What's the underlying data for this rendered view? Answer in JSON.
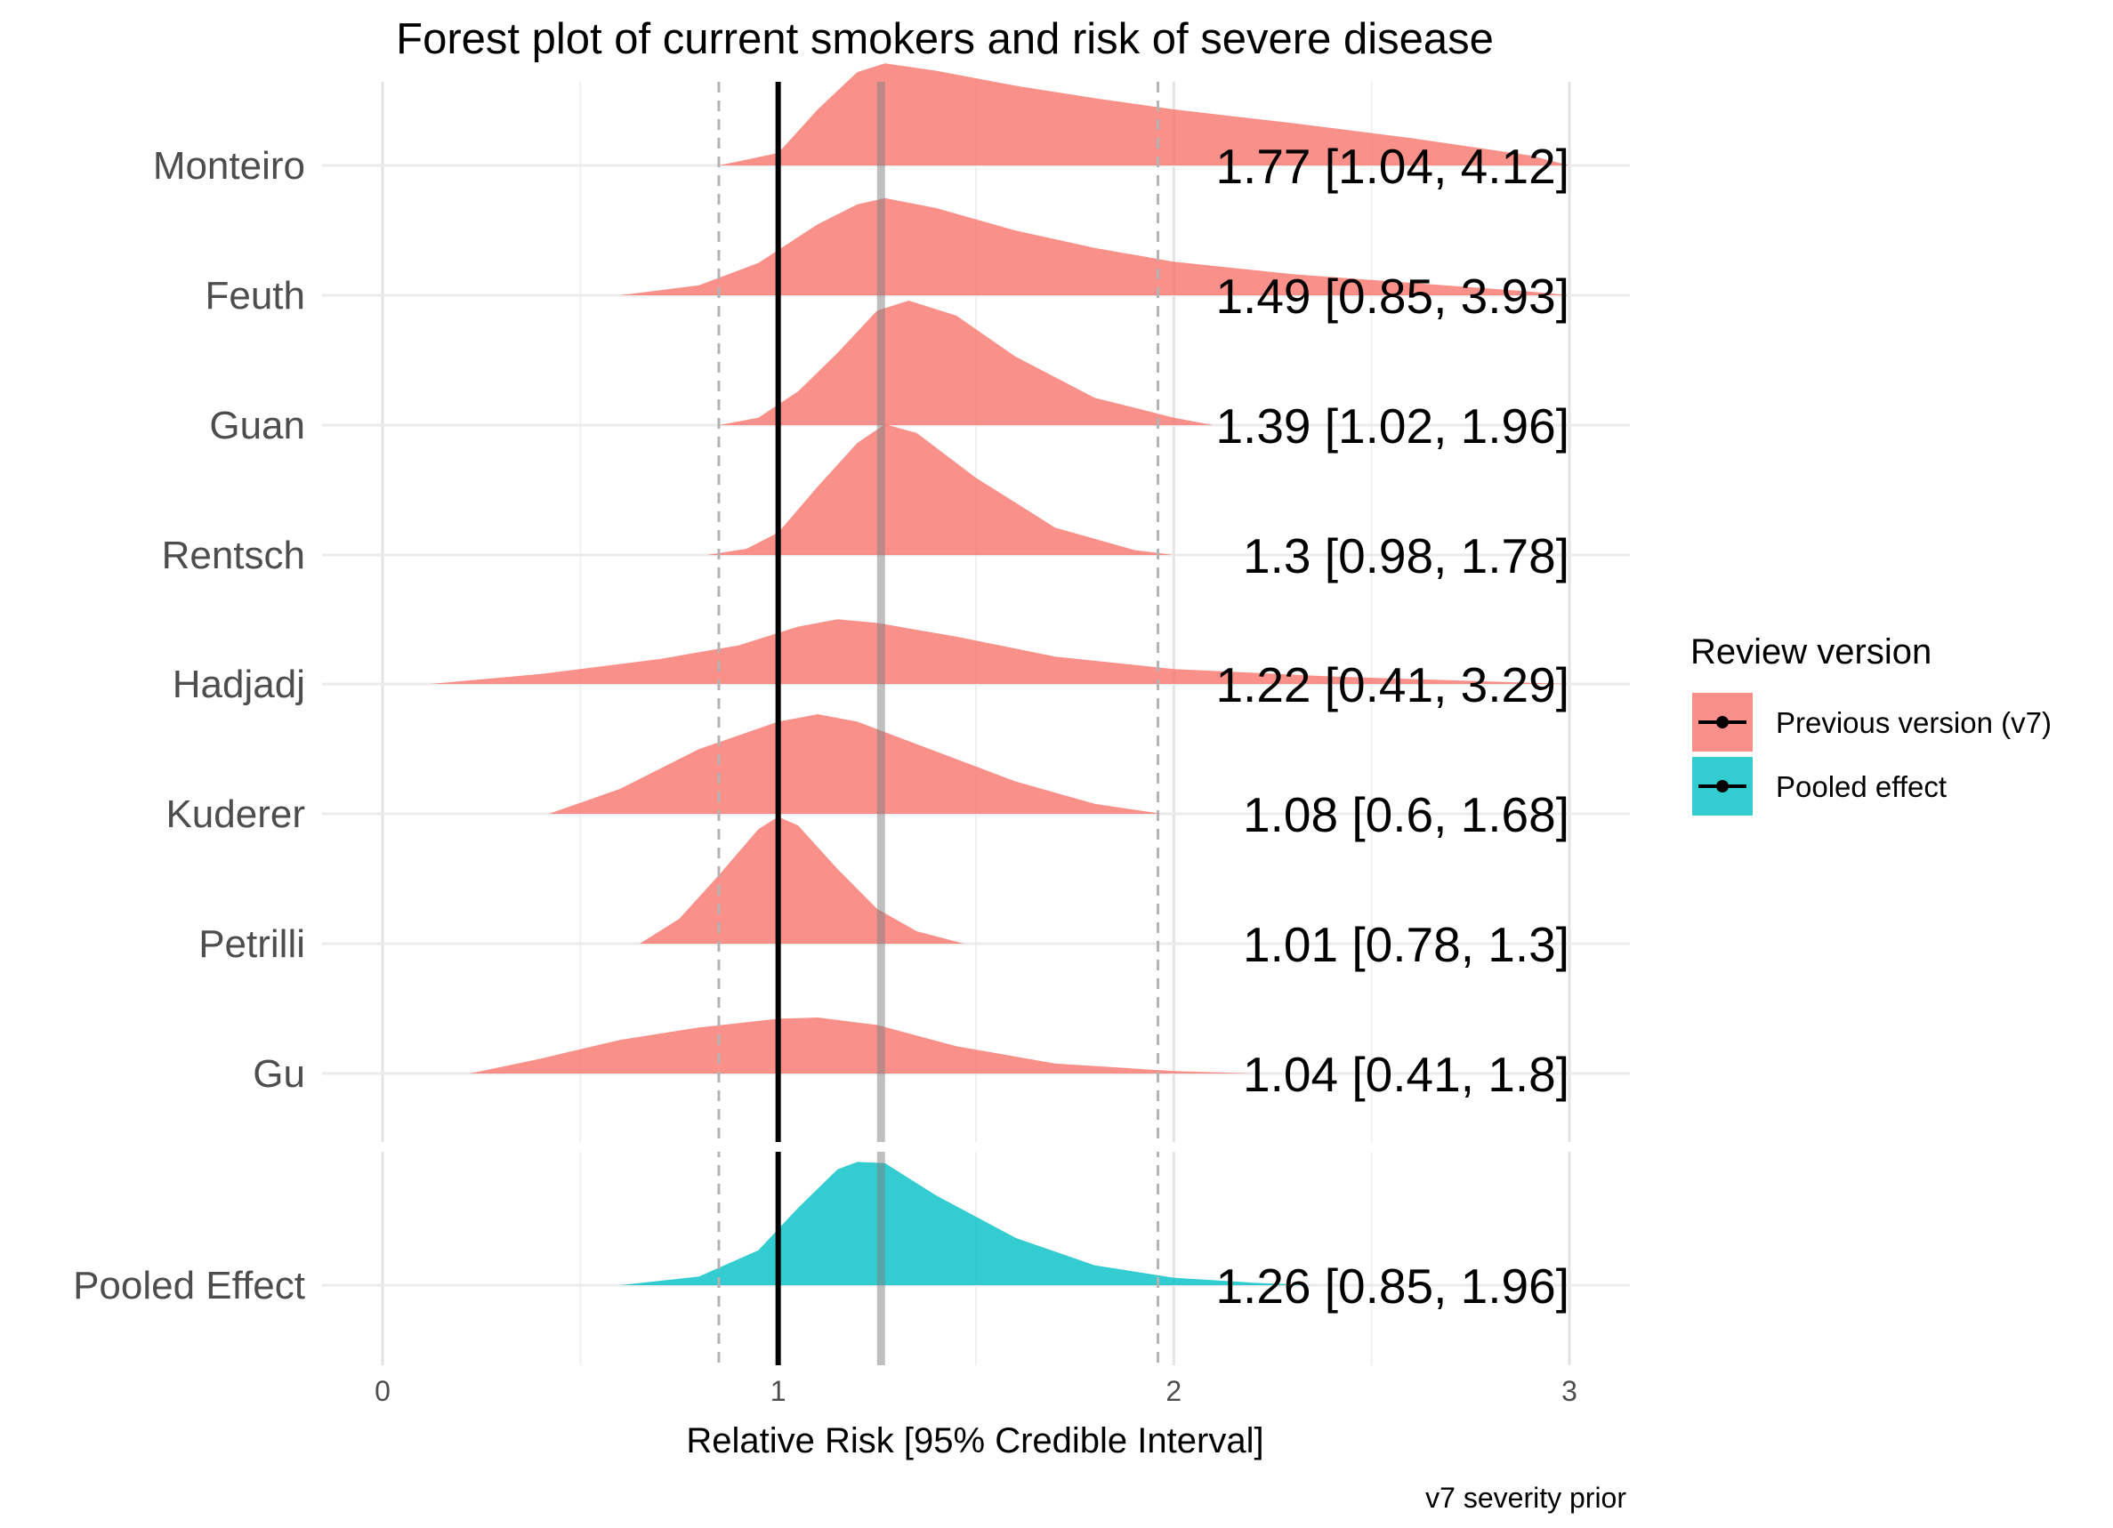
{
  "chart_data": {
    "type": "ridgeline",
    "title": "Forest plot of current smokers and risk of severe disease",
    "xlabel": "Relative Risk [95% Credible Interval]",
    "caption": "v7 severity prior",
    "xlim": [
      0,
      3
    ],
    "x_ticks": [
      "0",
      "1",
      "2",
      "3"
    ],
    "grid": true,
    "legend_position": "right",
    "legend": {
      "title": "Review version",
      "items": [
        {
          "label": "Previous version (v7)",
          "color": "#F8766D"
        },
        {
          "label": "Pooled effect",
          "color": "#00BFC4"
        }
      ]
    },
    "reference_lines": {
      "null_effect": 1.0,
      "pooled_estimate": 1.26,
      "pooled_ci": [
        0.85,
        1.96
      ]
    },
    "studies": [
      {
        "name": "Monteiro",
        "estimate": 1.77,
        "lower": 1.04,
        "upper": 4.12,
        "label": "1.77 [1.04, 4.12]",
        "group": "Previous version (v7)",
        "density": [
          [
            0.85,
            0
          ],
          [
            1.0,
            0.1
          ],
          [
            1.1,
            0.45
          ],
          [
            1.2,
            0.75
          ],
          [
            1.27,
            0.82
          ],
          [
            1.4,
            0.76
          ],
          [
            1.6,
            0.64
          ],
          [
            1.8,
            0.54
          ],
          [
            2.0,
            0.45
          ],
          [
            2.3,
            0.34
          ],
          [
            2.6,
            0.22
          ],
          [
            2.9,
            0.08
          ],
          [
            3.0,
            0
          ]
        ]
      },
      {
        "name": "Feuth",
        "estimate": 1.49,
        "lower": 0.85,
        "upper": 3.93,
        "label": "1.49 [0.85, 3.93]",
        "group": "Previous version (v7)",
        "density": [
          [
            0.6,
            0
          ],
          [
            0.8,
            0.08
          ],
          [
            0.95,
            0.26
          ],
          [
            1.1,
            0.57
          ],
          [
            1.2,
            0.73
          ],
          [
            1.27,
            0.78
          ],
          [
            1.4,
            0.7
          ],
          [
            1.6,
            0.52
          ],
          [
            1.8,
            0.38
          ],
          [
            2.0,
            0.27
          ],
          [
            2.3,
            0.17
          ],
          [
            2.6,
            0.1
          ],
          [
            2.9,
            0.03
          ],
          [
            3.0,
            0
          ]
        ]
      },
      {
        "name": "Guan",
        "estimate": 1.39,
        "lower": 1.02,
        "upper": 1.96,
        "label": "1.39 [1.02, 1.96]",
        "group": "Previous version (v7)",
        "density": [
          [
            0.85,
            0
          ],
          [
            0.95,
            0.06
          ],
          [
            1.05,
            0.27
          ],
          [
            1.15,
            0.58
          ],
          [
            1.25,
            0.92
          ],
          [
            1.33,
            1.0
          ],
          [
            1.45,
            0.88
          ],
          [
            1.6,
            0.55
          ],
          [
            1.8,
            0.22
          ],
          [
            2.0,
            0.06
          ],
          [
            2.1,
            0
          ]
        ]
      },
      {
        "name": "Rentsch",
        "estimate": 1.3,
        "lower": 0.98,
        "upper": 1.78,
        "label": "1.3 [0.98, 1.78]",
        "group": "Previous version (v7)",
        "density": [
          [
            0.82,
            0
          ],
          [
            0.92,
            0.05
          ],
          [
            1.0,
            0.18
          ],
          [
            1.1,
            0.55
          ],
          [
            1.2,
            0.9
          ],
          [
            1.27,
            1.05
          ],
          [
            1.35,
            0.98
          ],
          [
            1.5,
            0.62
          ],
          [
            1.7,
            0.22
          ],
          [
            1.9,
            0.04
          ],
          [
            2.0,
            0
          ]
        ]
      },
      {
        "name": "Hadjadj",
        "estimate": 1.22,
        "lower": 0.41,
        "upper": 3.29,
        "label": "1.22 [0.41, 3.29]",
        "group": "Previous version (v7)",
        "density": [
          [
            0.12,
            0
          ],
          [
            0.4,
            0.08
          ],
          [
            0.7,
            0.2
          ],
          [
            0.9,
            0.31
          ],
          [
            1.05,
            0.46
          ],
          [
            1.15,
            0.52
          ],
          [
            1.25,
            0.49
          ],
          [
            1.45,
            0.38
          ],
          [
            1.7,
            0.22
          ],
          [
            2.0,
            0.12
          ],
          [
            2.4,
            0.06
          ],
          [
            2.8,
            0.02
          ],
          [
            3.0,
            0
          ]
        ]
      },
      {
        "name": "Kuderer",
        "estimate": 1.08,
        "lower": 0.6,
        "upper": 1.68,
        "label": "1.08 [0.6, 1.68]",
        "group": "Previous version (v7)",
        "density": [
          [
            0.42,
            0
          ],
          [
            0.6,
            0.2
          ],
          [
            0.8,
            0.52
          ],
          [
            1.0,
            0.74
          ],
          [
            1.1,
            0.8
          ],
          [
            1.2,
            0.74
          ],
          [
            1.4,
            0.5
          ],
          [
            1.6,
            0.26
          ],
          [
            1.8,
            0.08
          ],
          [
            1.97,
            0
          ]
        ]
      },
      {
        "name": "Petrilli",
        "estimate": 1.01,
        "lower": 0.78,
        "upper": 1.3,
        "label": "1.01 [0.78, 1.3]",
        "group": "Previous version (v7)",
        "density": [
          [
            0.65,
            0
          ],
          [
            0.75,
            0.2
          ],
          [
            0.85,
            0.55
          ],
          [
            0.95,
            0.92
          ],
          [
            1.0,
            1.02
          ],
          [
            1.05,
            0.95
          ],
          [
            1.15,
            0.6
          ],
          [
            1.25,
            0.28
          ],
          [
            1.35,
            0.1
          ],
          [
            1.47,
            0
          ]
        ]
      },
      {
        "name": "Gu",
        "estimate": 1.04,
        "lower": 0.41,
        "upper": 1.8,
        "label": "1.04 [0.41, 1.8]",
        "group": "Previous version (v7)",
        "density": [
          [
            0.22,
            0
          ],
          [
            0.4,
            0.12
          ],
          [
            0.6,
            0.27
          ],
          [
            0.8,
            0.37
          ],
          [
            1.0,
            0.44
          ],
          [
            1.1,
            0.45
          ],
          [
            1.25,
            0.39
          ],
          [
            1.45,
            0.22
          ],
          [
            1.7,
            0.08
          ],
          [
            2.0,
            0.02
          ],
          [
            2.2,
            0
          ]
        ]
      },
      {
        "name": "Pooled Effect",
        "estimate": 1.26,
        "lower": 0.85,
        "upper": 1.96,
        "label": "1.26 [0.85, 1.96]",
        "group": "Pooled effect",
        "density": [
          [
            0.6,
            0
          ],
          [
            0.8,
            0.07
          ],
          [
            0.95,
            0.28
          ],
          [
            1.05,
            0.62
          ],
          [
            1.15,
            0.93
          ],
          [
            1.2,
            0.99
          ],
          [
            1.27,
            0.98
          ],
          [
            1.4,
            0.72
          ],
          [
            1.6,
            0.38
          ],
          [
            1.8,
            0.16
          ],
          [
            2.0,
            0.06
          ],
          [
            2.2,
            0.02
          ],
          [
            2.35,
            0
          ]
        ]
      }
    ]
  }
}
